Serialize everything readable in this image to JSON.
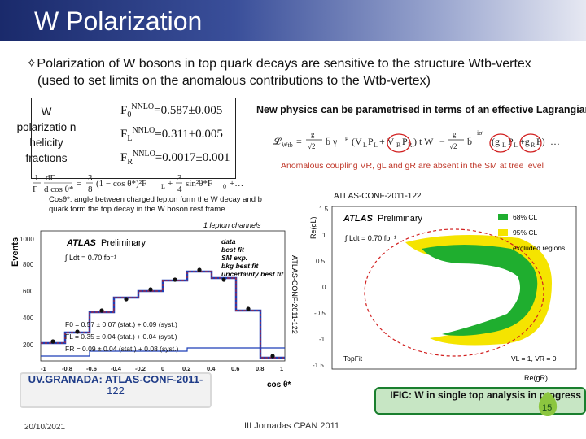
{
  "slide": {
    "title": "W Polarization",
    "bullet_glyph": "✧",
    "bullet_line1": "Polarization of W bosons in top quark decays are sensitive to the structure Wtb-vertex",
    "bullet_line2": "(used to set limits on the anomalous contributions to the Wtb-vertex)"
  },
  "helicity": {
    "label": "W polarizatio n helicity fractions",
    "f0_main": "F",
    "f0_sub": "0",
    "f0_sup": "NNLO",
    "f0_val": "=0.587±0.005",
    "fl_main": "F",
    "fl_sub": "L",
    "fl_sup": "NNLO",
    "fl_val": "=0.311±0.005",
    "fr_main": "F",
    "fr_sub": "R",
    "fr_sup": "NNLO",
    "fr_val": "=0.0017±0.001"
  },
  "new_physics": {
    "text": "New physics can be parametrised in terms of an effective Lagrangian:",
    "anomalous": "Anomalous coupling VR, gL and gR are absent in the SM at tree level"
  },
  "cos_desc": "Cosθ*: angle between charged lepton form the W decay and b quark form the top decay in the W boson rest frame",
  "atlas_conf": "ATLAS-CONF-2011-122",
  "left_plot": {
    "y_title": "Events",
    "x_title": "cos θ*",
    "title": "1 lepton channels",
    "atlas": "ATLAS",
    "prelim": "Preliminary",
    "lumi": "∫ Ldt = 0.70 fb⁻¹",
    "legend": [
      "data",
      "best fit",
      "SM exp.",
      "bkg best fit",
      "uncertainty best fit"
    ],
    "results": [
      "F0 = 0.57 ± 0.07 (stat.) + 0.09 (syst.)",
      "FL = 0.35 ± 0.04 (stat.) + 0.04 (syst.)",
      "FR = 0.09 ± 0.04 (stat.) + 0.08 (syst.)"
    ],
    "y_ticks": [
      "1000",
      "800",
      "600",
      "400",
      "200"
    ],
    "x_ticks": [
      "-1",
      "-0.8",
      "-0.6",
      "-0.4",
      "-0.2",
      "0",
      "0.2",
      "0.4",
      "0.6",
      "0.8",
      "1"
    ]
  },
  "right_plot": {
    "y_title": "Re(gL)",
    "x_title": "Re(gR)",
    "atlas": "ATLAS",
    "prelim": "Preliminary",
    "lumi": "∫ Ldt = 0.70 fb⁻¹",
    "legend": [
      "68% CL",
      "95% CL",
      "excluded regions"
    ],
    "note_left": "TopFit",
    "note_right": "VL = 1, VR = 0",
    "y_ticks": [
      "1.5",
      "1",
      "0.5",
      "0",
      "-0.5",
      "-1",
      "-1.5"
    ],
    "x_ticks": [
      "-1.5",
      "-1",
      "-0.5",
      "0",
      "0.5",
      "1",
      "1.5"
    ]
  },
  "vertical_label": "ATLAS-CONF-2011-122",
  "granada": {
    "line1": "UV.GRANADA: ATLAS-CONF-2011-",
    "line2": "122"
  },
  "ific": {
    "text": "IFIC: W in single top analysis in progress"
  },
  "footer": {
    "date": "20/10/2021",
    "event": "III Jornadas CPAN 2011",
    "page": "15"
  },
  "colors": {
    "title_bg": "#1a2a6b",
    "green": "#1fae2f",
    "yellow": "#f5e400",
    "red": "#d11f1f"
  }
}
